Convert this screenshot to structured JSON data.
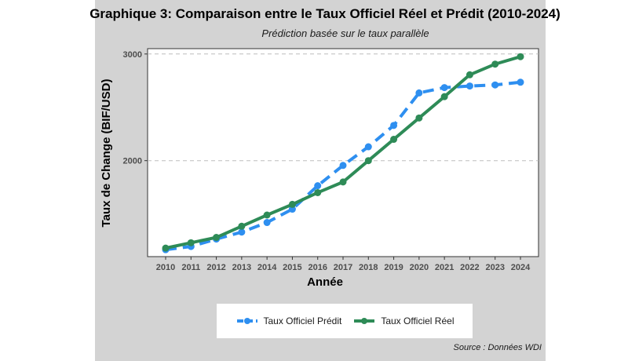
{
  "chart_data": {
    "type": "line",
    "title": "Graphique 3: Comparaison entre le Taux Officiel Réel et Prédit (2010-2024)",
    "subtitle": "Prédiction basée sur le taux parallèle",
    "xlabel": "Année",
    "ylabel": "Taux de Change (BIF/USD)",
    "source": "Source : Données WDI",
    "x": [
      2010,
      2011,
      2012,
      2013,
      2014,
      2015,
      2016,
      2017,
      2018,
      2019,
      2020,
      2021,
      2022,
      2023,
      2024
    ],
    "y_ticks": [
      2000,
      3000
    ],
    "ylim": [
      1100,
      3050
    ],
    "grid": "horizontal dashed",
    "legend_position": "bottom",
    "series": [
      {
        "name": "Taux Officiel Prédit",
        "color": "#2e8ff0",
        "style": "dashed",
        "values": [
          1165,
          1195,
          1265,
          1330,
          1420,
          1545,
          1765,
          1955,
          2130,
          2330,
          2635,
          2685,
          2700,
          2710,
          2735
        ]
      },
      {
        "name": "Taux Officiel Réel",
        "color": "#2e8b57",
        "style": "solid",
        "values": [
          1180,
          1230,
          1280,
          1385,
          1490,
          1590,
          1700,
          1800,
          2000,
          2200,
          2400,
          2600,
          2805,
          2905,
          2975
        ]
      }
    ]
  }
}
